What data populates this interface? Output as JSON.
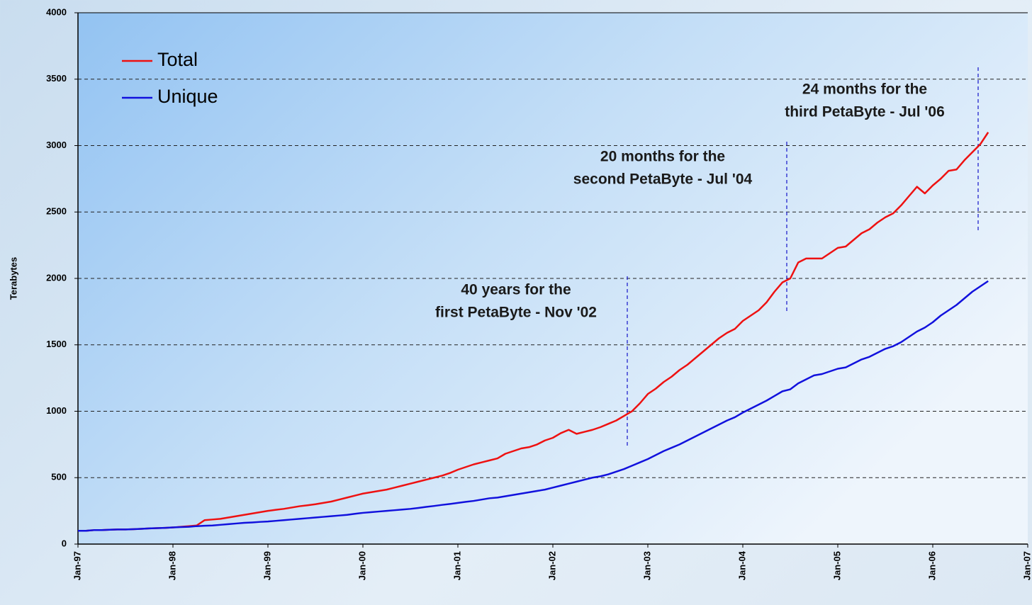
{
  "chart_data": {
    "type": "line",
    "y_label": "Terabytes",
    "categories": [
      "Jan-97",
      null,
      null,
      null,
      null,
      null,
      null,
      null,
      null,
      null,
      null,
      null,
      "Jan-98",
      null,
      null,
      null,
      null,
      null,
      null,
      null,
      null,
      null,
      null,
      null,
      "Jan-99",
      null,
      null,
      null,
      null,
      null,
      null,
      null,
      null,
      null,
      null,
      null,
      "Jan-00",
      null,
      null,
      null,
      null,
      null,
      null,
      null,
      null,
      null,
      null,
      null,
      "Jan-01",
      null,
      null,
      null,
      null,
      null,
      null,
      null,
      null,
      null,
      null,
      null,
      "Jan-02",
      null,
      null,
      null,
      null,
      null,
      null,
      null,
      null,
      null,
      null,
      null,
      "Jan-03",
      null,
      null,
      null,
      null,
      null,
      null,
      null,
      null,
      null,
      null,
      null,
      "Jan-04",
      null,
      null,
      null,
      null,
      null,
      null,
      null,
      null,
      null,
      null,
      null,
      "Jan-05",
      null,
      null,
      null,
      null,
      null,
      null,
      null,
      null,
      null,
      null,
      null,
      "Jan-06",
      null,
      null,
      null,
      null,
      null,
      null,
      null,
      null,
      null,
      null,
      null,
      "Jan-07"
    ],
    "series": [
      {
        "name": "Total",
        "color": "#ee1111",
        "values": [
          100,
          100,
          105,
          105,
          108,
          110,
          110,
          112,
          115,
          118,
          120,
          122,
          125,
          130,
          135,
          140,
          180,
          185,
          190,
          200,
          210,
          220,
          230,
          240,
          250,
          258,
          265,
          275,
          285,
          292,
          300,
          310,
          320,
          335,
          350,
          365,
          380,
          390,
          400,
          410,
          425,
          440,
          455,
          470,
          485,
          500,
          515,
          535,
          560,
          580,
          600,
          615,
          630,
          645,
          680,
          700,
          720,
          730,
          750,
          780,
          800,
          835,
          860,
          830,
          845,
          860,
          880,
          905,
          930,
          965,
          1000,
          1060,
          1130,
          1170,
          1220,
          1260,
          1310,
          1350,
          1400,
          1450,
          1500,
          1550,
          1590,
          1620,
          1680,
          1720,
          1760,
          1820,
          1900,
          1970,
          2000,
          2120,
          2150,
          2150,
          2150,
          2190,
          2230,
          2240,
          2290,
          2340,
          2370,
          2420,
          2460,
          2490,
          2550,
          2620,
          2690,
          2640,
          2700,
          2750,
          2810,
          2820,
          2890,
          2950,
          3010,
          3100,
          null,
          null,
          null,
          null,
          null
        ]
      },
      {
        "name": "Unique",
        "color": "#1111dd",
        "values": [
          100,
          100,
          105,
          105,
          108,
          110,
          110,
          112,
          115,
          118,
          120,
          122,
          125,
          128,
          130,
          135,
          138,
          140,
          145,
          150,
          155,
          160,
          163,
          167,
          170,
          175,
          180,
          185,
          190,
          195,
          200,
          205,
          210,
          215,
          220,
          228,
          235,
          240,
          245,
          250,
          255,
          260,
          265,
          272,
          280,
          287,
          295,
          302,
          310,
          318,
          325,
          335,
          345,
          350,
          360,
          370,
          380,
          390,
          400,
          410,
          425,
          440,
          455,
          470,
          485,
          500,
          510,
          525,
          545,
          565,
          590,
          615,
          640,
          670,
          700,
          725,
          750,
          780,
          810,
          840,
          870,
          900,
          930,
          955,
          990,
          1020,
          1050,
          1080,
          1115,
          1150,
          1165,
          1210,
          1240,
          1270,
          1280,
          1300,
          1320,
          1330,
          1360,
          1390,
          1410,
          1440,
          1470,
          1490,
          1520,
          1560,
          1600,
          1630,
          1670,
          1720,
          1760,
          1800,
          1850,
          1900,
          1940,
          1980,
          null,
          null,
          null,
          null,
          null
        ]
      }
    ],
    "ylim": [
      0,
      4000
    ],
    "yticks": [
      0,
      500,
      1000,
      1500,
      2000,
      2500,
      3000,
      3500,
      4000
    ],
    "grid": true,
    "legend": "top-left",
    "annotations": [
      {
        "lines": [
          "40 years for the",
          "first PetaByte - Nov '02"
        ]
      },
      {
        "lines": [
          "20 months for the",
          "second PetaByte - Jul '04"
        ]
      },
      {
        "lines": [
          "24 months for the",
          "third PetaByte - Jul '06"
        ]
      }
    ]
  }
}
